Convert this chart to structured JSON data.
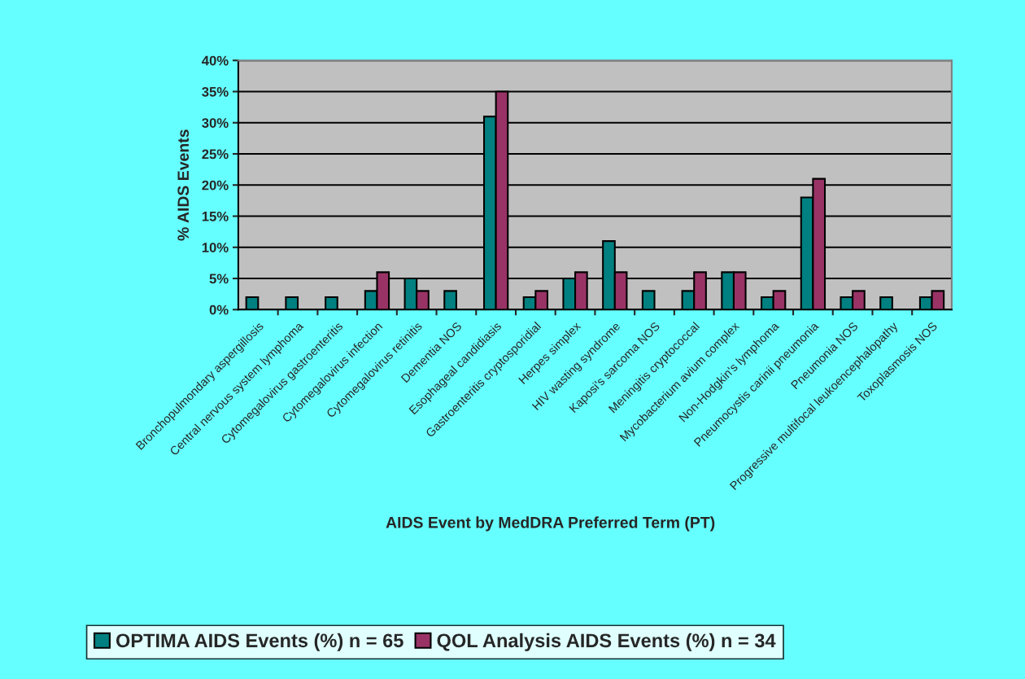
{
  "chart_data": {
    "type": "bar",
    "xlabel": "AIDS Event by MedDRA Preferred Term (PT)",
    "ylabel": "% AIDS Events",
    "categories": [
      "Bronchopulmondary aspergillosis",
      "Central nervous system lymphoma",
      "Cytomegalovirus gastroenteritis",
      "Cytomegalovirus infection",
      "Cytomegalovirus retinitis",
      "Dementia NOS",
      "Esophageal candidiasis",
      "Gastroenteritis cryptosporidial",
      "Herpes simplex",
      "HIV wasting syndrome",
      "Kaposi's sarcoma NOS",
      "Meningitis cryptococcal",
      "Mycobacterium avium complex",
      "Non-Hodgkin's lymphoma",
      "Pneumocystis carinii pneumonia",
      "Pneumonia NOS",
      "Progressive multifocal leukoencephalopathy",
      "Toxoplasmosis NOS"
    ],
    "series": [
      {
        "name": "OPTIMA AIDS Events (%) n = 65",
        "color": "#008080",
        "values": [
          2,
          2,
          2,
          3,
          5,
          3,
          31,
          2,
          5,
          11,
          3,
          3,
          6,
          2,
          18,
          2,
          2,
          2
        ]
      },
      {
        "name": "QOL Analysis AIDS Events (%) n = 34",
        "color": "#993366",
        "values": [
          null,
          null,
          null,
          6,
          3,
          null,
          35,
          3,
          6,
          6,
          null,
          6,
          6,
          3,
          21,
          3,
          null,
          3
        ]
      }
    ],
    "ylim": [
      0,
      40
    ],
    "yticks": [
      {
        "value": 0,
        "label": "0%"
      },
      {
        "value": 5,
        "label": "5%"
      },
      {
        "value": 10,
        "label": "10%"
      },
      {
        "value": 15,
        "label": "15%"
      },
      {
        "value": 20,
        "label": "20%"
      },
      {
        "value": 25,
        "label": "25%"
      },
      {
        "value": 30,
        "label": "30%"
      },
      {
        "value": 35,
        "label": "35%"
      },
      {
        "value": 40,
        "label": "40%"
      }
    ],
    "grid": "y",
    "legend": "bottom"
  }
}
